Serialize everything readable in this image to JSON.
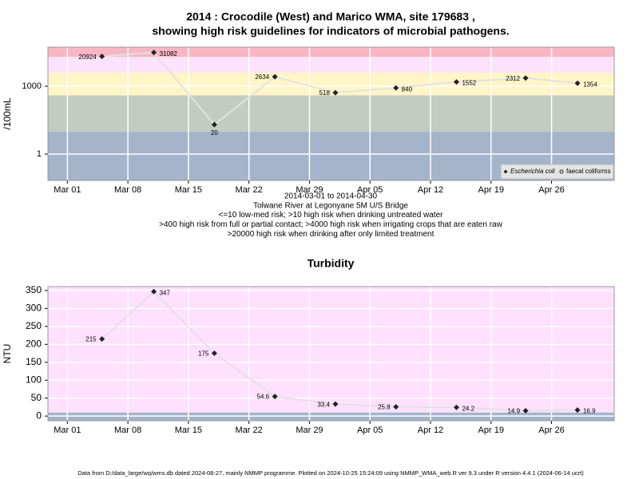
{
  "chart_data": [
    {
      "type": "line",
      "title": "2014 : Crocodile (West) and Marico WMA, site 179683 ,",
      "subtitle": "showing high risk guidelines for indicators of microbial pathogens.",
      "notes": [
        "2014-03-01 to 2014-04-30",
        "Tolwane River at Legonyane 5M U/S Bridge",
        "<=10 low-med risk; >10 high risk when drinking untreated water",
        ">400 high risk from full or partial contact; >4000 high risk when irrigating crops that are eaten raw",
        ">20000 high risk when drinking after only limited treatment"
      ],
      "ylabel": "/100mL",
      "x": [
        "2014-03-05",
        "2014-03-11",
        "2014-03-18",
        "2014-03-25",
        "2014-04-01",
        "2014-04-08",
        "2014-04-15",
        "2014-04-23",
        "2014-04-29"
      ],
      "series": [
        {
          "name": "Escherichia coli",
          "color": "#222222",
          "marker": "diamond",
          "values": [
            20924,
            31082,
            20,
            2634,
            518,
            840,
            1552,
            2312,
            1354
          ]
        },
        {
          "name": "faecal coliforms",
          "color": "#222222",
          "marker": "circle",
          "values": [
            null,
            null,
            null,
            null,
            null,
            null,
            null,
            null,
            null
          ]
        }
      ],
      "line_color": "#e2e2e2",
      "xlim": [
        "2014-02-26T18:00",
        "2014-05-03T06:00"
      ],
      "xticks": [
        {
          "value": "2014-03-01",
          "label": "Mar 01"
        },
        {
          "value": "2014-03-08",
          "label": "Mar 08"
        },
        {
          "value": "2014-03-15",
          "label": "Mar 15"
        },
        {
          "value": "2014-03-22",
          "label": "Mar 22"
        },
        {
          "value": "2014-03-29",
          "label": "Mar 29"
        },
        {
          "value": "2014-04-05",
          "label": "Apr 05"
        },
        {
          "value": "2014-04-12",
          "label": "Apr 12"
        },
        {
          "value": "2014-04-19",
          "label": "Apr 19"
        },
        {
          "value": "2014-04-26",
          "label": "Apr 26"
        }
      ],
      "ylim": [
        0.068,
        54000
      ],
      "yticks": [
        1,
        1000
      ],
      "log_y": true,
      "thresholds": [
        10,
        400,
        4000,
        20000
      ],
      "band_colors": [
        "#a3b4cb",
        "#c3ccc1",
        "#fff5c6",
        "#fde2fb",
        "#f8b6c3"
      ],
      "grid": true,
      "legend": "bottomright"
    },
    {
      "type": "line",
      "title": "Turbidity",
      "ylabel": "NTU",
      "x": [
        "2014-03-05",
        "2014-03-11",
        "2014-03-18",
        "2014-03-25",
        "2014-04-01",
        "2014-04-08",
        "2014-04-15",
        "2014-04-23",
        "2014-04-29"
      ],
      "series": [
        {
          "color": "#222222",
          "marker": "diamond",
          "values": [
            215,
            347,
            175,
            54.6,
            33.4,
            25.8,
            24.2,
            14.9,
            16.9
          ]
        }
      ],
      "line_color": "#e2e2e2",
      "xlim": [
        "2014-02-26T18:00",
        "2014-05-03T06:00"
      ],
      "xticks": [
        {
          "value": "2014-03-01",
          "label": "Mar 01"
        },
        {
          "value": "2014-03-08",
          "label": "Mar 08"
        },
        {
          "value": "2014-03-15",
          "label": "Mar 15"
        },
        {
          "value": "2014-03-22",
          "label": "Mar 22"
        },
        {
          "value": "2014-03-29",
          "label": "Mar 29"
        },
        {
          "value": "2014-04-05",
          "label": "Apr 05"
        },
        {
          "value": "2014-04-12",
          "label": "Apr 12"
        },
        {
          "value": "2014-04-19",
          "label": "Apr 19"
        },
        {
          "value": "2014-04-26",
          "label": "Apr 26"
        }
      ],
      "ylim": [
        -13,
        361
      ],
      "yticks": [
        0,
        50,
        100,
        150,
        200,
        250,
        300,
        350
      ],
      "log_y": false,
      "thresholds": [
        10
      ],
      "band_colors": [
        "#a3b4cb",
        "#ffe0ff"
      ],
      "grid": true
    }
  ],
  "footer": "Data from D:/data_large/wq/wms.db dated 2024-08-27, mainly NMMP programme. Plotted on 2024-10-25 15:24:09 using NMMP_WMA_web.R ver 9.3 under R version 4.4.1 (2024-06-14 ucrt)"
}
